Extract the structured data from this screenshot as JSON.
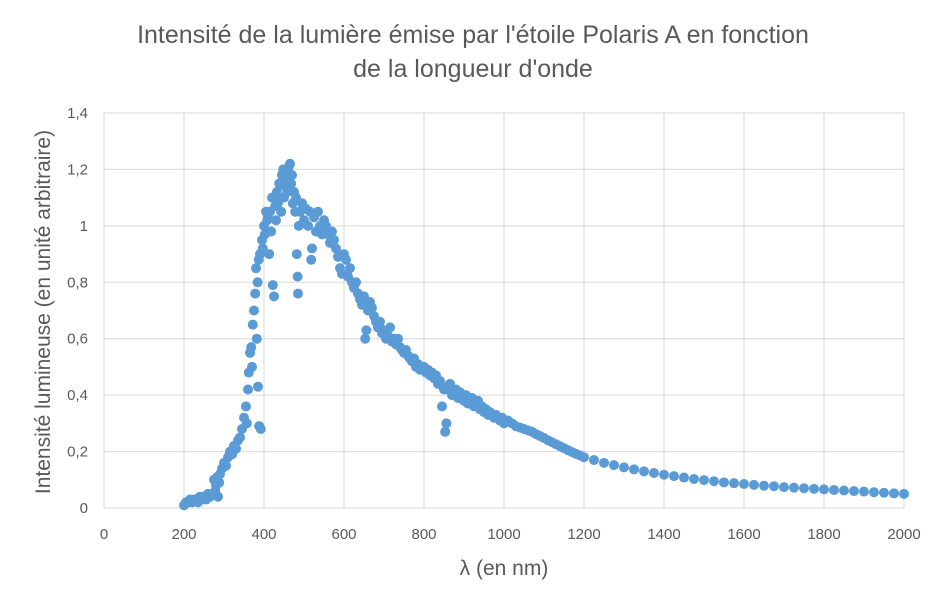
{
  "chart_data": {
    "type": "scatter",
    "title_line1": "Intensité de la lumière émise par l'étoile Polaris A en fonction",
    "title_line2": "de la longueur d'onde",
    "xlabel": "λ (en nm)",
    "ylabel": "Intensité lumineuse  (en unité arbitraire)",
    "xlim": [
      0,
      2000
    ],
    "ylim": [
      0,
      1.4
    ],
    "x_ticks": [
      "0",
      "200",
      "400",
      "600",
      "800",
      "1000",
      "1200",
      "1400",
      "1600",
      "1800",
      "2000"
    ],
    "y_ticks": [
      "0",
      "0,2",
      "0,4",
      "0,6",
      "0,8",
      "1",
      "1,2",
      "1,4"
    ],
    "grid": true,
    "legend": "none",
    "marker_color": "#5B9BD5",
    "series": [
      {
        "points": [
          [
            200,
            0.01
          ],
          [
            205,
            0.02
          ],
          [
            210,
            0.02
          ],
          [
            215,
            0.03
          ],
          [
            220,
            0.02
          ],
          [
            225,
            0.03
          ],
          [
            230,
            0.03
          ],
          [
            235,
            0.02
          ],
          [
            240,
            0.04
          ],
          [
            245,
            0.03
          ],
          [
            250,
            0.04
          ],
          [
            255,
            0.03
          ],
          [
            260,
            0.05
          ],
          [
            265,
            0.04
          ],
          [
            270,
            0.05
          ],
          [
            275,
            0.1
          ],
          [
            278,
            0.06
          ],
          [
            280,
            0.08
          ],
          [
            283,
            0.11
          ],
          [
            285,
            0.04
          ],
          [
            288,
            0.09
          ],
          [
            290,
            0.12
          ],
          [
            295,
            0.14
          ],
          [
            300,
            0.16
          ],
          [
            305,
            0.15
          ],
          [
            310,
            0.18
          ],
          [
            315,
            0.2
          ],
          [
            320,
            0.19
          ],
          [
            325,
            0.22
          ],
          [
            330,
            0.21
          ],
          [
            335,
            0.24
          ],
          [
            340,
            0.25
          ],
          [
            345,
            0.28
          ],
          [
            350,
            0.32
          ],
          [
            355,
            0.36
          ],
          [
            357,
            0.3
          ],
          [
            360,
            0.42
          ],
          [
            362,
            0.48
          ],
          [
            365,
            0.55
          ],
          [
            368,
            0.57
          ],
          [
            370,
            0.5
          ],
          [
            372,
            0.65
          ],
          [
            375,
            0.7
          ],
          [
            378,
            0.76
          ],
          [
            380,
            0.85
          ],
          [
            382,
            0.6
          ],
          [
            384,
            0.8
          ],
          [
            385,
            0.43
          ],
          [
            387,
            0.88
          ],
          [
            388,
            0.29
          ],
          [
            390,
            0.9
          ],
          [
            392,
            0.28
          ],
          [
            395,
            0.95
          ],
          [
            397,
            0.92
          ],
          [
            400,
            1.0
          ],
          [
            402,
            0.97
          ],
          [
            405,
            1.05
          ],
          [
            408,
            1.02
          ],
          [
            410,
            1.03
          ],
          [
            413,
            0.9
          ],
          [
            415,
            1.05
          ],
          [
            418,
            0.98
          ],
          [
            420,
            1.1
          ],
          [
            422,
            0.79
          ],
          [
            425,
            0.75
          ],
          [
            428,
            1.07
          ],
          [
            430,
            1.02
          ],
          [
            432,
            1.12
          ],
          [
            435,
            1.08
          ],
          [
            438,
            1.15
          ],
          [
            440,
            1.1
          ],
          [
            443,
            1.05
          ],
          [
            445,
            1.18
          ],
          [
            448,
            1.2
          ],
          [
            450,
            1.1
          ],
          [
            452,
            1.14
          ],
          [
            455,
            1.16
          ],
          [
            458,
            1.12
          ],
          [
            460,
            1.19
          ],
          [
            462,
            1.21
          ],
          [
            465,
            1.22
          ],
          [
            468,
            1.15
          ],
          [
            470,
            1.18
          ],
          [
            472,
            1.08
          ],
          [
            475,
            1.12
          ],
          [
            478,
            1.05
          ],
          [
            480,
            1.1
          ],
          [
            482,
            0.9
          ],
          [
            484,
            0.82
          ],
          [
            485,
            0.76
          ],
          [
            487,
            1.0
          ],
          [
            490,
            1.05
          ],
          [
            495,
            1.08
          ],
          [
            500,
            1.02
          ],
          [
            505,
            1.06
          ],
          [
            510,
            1.0
          ],
          [
            515,
            1.05
          ],
          [
            518,
            0.88
          ],
          [
            520,
            0.92
          ],
          [
            525,
            1.03
          ],
          [
            530,
            0.98
          ],
          [
            535,
            1.05
          ],
          [
            540,
            1.0
          ],
          [
            545,
            0.97
          ],
          [
            550,
            1.02
          ],
          [
            555,
            1.0
          ],
          [
            560,
            0.97
          ],
          [
            565,
            0.94
          ],
          [
            570,
            0.98
          ],
          [
            575,
            0.95
          ],
          [
            580,
            0.92
          ],
          [
            585,
            0.89
          ],
          [
            590,
            0.85
          ],
          [
            595,
            0.83
          ],
          [
            600,
            0.9
          ],
          [
            605,
            0.88
          ],
          [
            610,
            0.82
          ],
          [
            615,
            0.85
          ],
          [
            620,
            0.8
          ],
          [
            625,
            0.78
          ],
          [
            630,
            0.8
          ],
          [
            635,
            0.76
          ],
          [
            640,
            0.74
          ],
          [
            645,
            0.72
          ],
          [
            650,
            0.75
          ],
          [
            653,
            0.6
          ],
          [
            656,
            0.63
          ],
          [
            660,
            0.7
          ],
          [
            665,
            0.73
          ],
          [
            670,
            0.71
          ],
          [
            675,
            0.68
          ],
          [
            680,
            0.66
          ],
          [
            685,
            0.64
          ],
          [
            690,
            0.66
          ],
          [
            695,
            0.62
          ],
          [
            700,
            0.63
          ],
          [
            705,
            0.6
          ],
          [
            710,
            0.61
          ],
          [
            715,
            0.64
          ],
          [
            720,
            0.59
          ],
          [
            725,
            0.6
          ],
          [
            730,
            0.58
          ],
          [
            735,
            0.6
          ],
          [
            740,
            0.57
          ],
          [
            745,
            0.56
          ],
          [
            750,
            0.55
          ],
          [
            755,
            0.56
          ],
          [
            760,
            0.54
          ],
          [
            765,
            0.53
          ],
          [
            770,
            0.52
          ],
          [
            775,
            0.53
          ],
          [
            780,
            0.5
          ],
          [
            785,
            0.51
          ],
          [
            790,
            0.49
          ],
          [
            795,
            0.5
          ],
          [
            800,
            0.5
          ],
          [
            805,
            0.48
          ],
          [
            810,
            0.49
          ],
          [
            815,
            0.47
          ],
          [
            820,
            0.48
          ],
          [
            825,
            0.46
          ],
          [
            830,
            0.47
          ],
          [
            835,
            0.44
          ],
          [
            840,
            0.45
          ],
          [
            845,
            0.36
          ],
          [
            848,
            0.43
          ],
          [
            850,
            0.42
          ],
          [
            853,
            0.27
          ],
          [
            856,
            0.3
          ],
          [
            860,
            0.42
          ],
          [
            865,
            0.44
          ],
          [
            870,
            0.4
          ],
          [
            875,
            0.41
          ],
          [
            880,
            0.42
          ],
          [
            885,
            0.39
          ],
          [
            890,
            0.41
          ],
          [
            895,
            0.4
          ],
          [
            900,
            0.38
          ],
          [
            905,
            0.4
          ],
          [
            910,
            0.37
          ],
          [
            915,
            0.38
          ],
          [
            920,
            0.39
          ],
          [
            925,
            0.36
          ],
          [
            930,
            0.37
          ],
          [
            935,
            0.38
          ],
          [
            940,
            0.35
          ],
          [
            945,
            0.36
          ],
          [
            950,
            0.34
          ],
          [
            955,
            0.35
          ],
          [
            960,
            0.33
          ],
          [
            965,
            0.34
          ],
          [
            970,
            0.33
          ],
          [
            975,
            0.32
          ],
          [
            980,
            0.33
          ],
          [
            985,
            0.32
          ],
          [
            990,
            0.31
          ],
          [
            995,
            0.32
          ],
          [
            1000,
            0.3
          ],
          [
            1010,
            0.31
          ],
          [
            1020,
            0.3
          ],
          [
            1030,
            0.29
          ],
          [
            1040,
            0.285
          ],
          [
            1050,
            0.28
          ],
          [
            1060,
            0.275
          ],
          [
            1070,
            0.27
          ],
          [
            1080,
            0.262
          ],
          [
            1090,
            0.255
          ],
          [
            1100,
            0.248
          ],
          [
            1110,
            0.24
          ],
          [
            1120,
            0.233
          ],
          [
            1130,
            0.226
          ],
          [
            1140,
            0.219
          ],
          [
            1150,
            0.212
          ],
          [
            1160,
            0.205
          ],
          [
            1170,
            0.198
          ],
          [
            1180,
            0.192
          ],
          [
            1190,
            0.186
          ],
          [
            1200,
            0.18
          ],
          [
            1225,
            0.17
          ],
          [
            1250,
            0.16
          ],
          [
            1275,
            0.152
          ],
          [
            1300,
            0.144
          ],
          [
            1325,
            0.137
          ],
          [
            1350,
            0.13
          ],
          [
            1375,
            0.124
          ],
          [
            1400,
            0.118
          ],
          [
            1425,
            0.113
          ],
          [
            1450,
            0.108
          ],
          [
            1475,
            0.103
          ],
          [
            1500,
            0.099
          ],
          [
            1525,
            0.095
          ],
          [
            1550,
            0.091
          ],
          [
            1575,
            0.088
          ],
          [
            1600,
            0.085
          ],
          [
            1625,
            0.082
          ],
          [
            1650,
            0.079
          ],
          [
            1675,
            0.077
          ],
          [
            1700,
            0.074
          ],
          [
            1725,
            0.072
          ],
          [
            1750,
            0.07
          ],
          [
            1775,
            0.068
          ],
          [
            1800,
            0.066
          ],
          [
            1825,
            0.064
          ],
          [
            1850,
            0.062
          ],
          [
            1875,
            0.06
          ],
          [
            1900,
            0.058
          ],
          [
            1925,
            0.056
          ],
          [
            1950,
            0.054
          ],
          [
            1975,
            0.052
          ],
          [
            2000,
            0.05
          ]
        ]
      }
    ]
  }
}
